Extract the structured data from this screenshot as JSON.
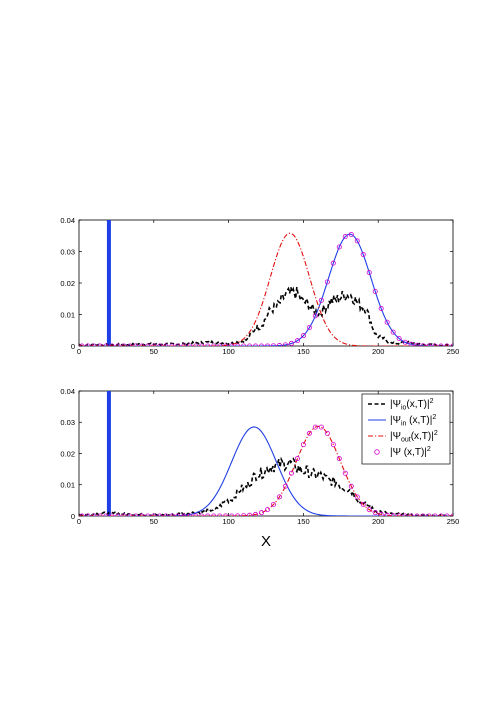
{
  "chart_data": [
    {
      "type": "line",
      "xlim": [
        0,
        250
      ],
      "ylim": [
        0,
        0.04
      ],
      "xticks": [
        0,
        50,
        100,
        150,
        200,
        250
      ],
      "yticks": [
        0,
        0.01,
        0.02,
        0.03,
        0.04
      ],
      "xtick_labels": [
        "0",
        "50",
        "100",
        "150",
        "200",
        "250"
      ],
      "ytick_labels": [
        "0",
        "0.01",
        "0.02",
        "0.03",
        "0.04"
      ],
      "xlabel": "",
      "barrier": {
        "x": 20,
        "color": "#1f3fe6"
      },
      "legend": false,
      "series": [
        {
          "style": "black-dashed",
          "color": "#000000",
          "x": [
            0,
            60,
            90,
            100,
            110,
            120,
            130,
            140,
            145,
            150,
            160,
            170,
            180,
            190,
            200,
            210,
            220,
            230,
            250
          ],
          "y": [
            0.0003,
            0.0006,
            0.0012,
            0.0008,
            0.0015,
            0.006,
            0.012,
            0.0165,
            0.0168,
            0.014,
            0.0105,
            0.0145,
            0.0165,
            0.0125,
            0.003,
            0.0008,
            0.0012,
            0.0004,
            0.0002
          ]
        },
        {
          "style": "blue-solid",
          "color": "#1f3fe6",
          "peak_x": 181,
          "peak_y": 0.0355,
          "sigma": 14.2,
          "x": [
            150,
            165,
            181,
            197,
            212
          ],
          "y": [
            0.003,
            0.017,
            0.0355,
            0.017,
            0.003
          ]
        },
        {
          "style": "red-dashdot",
          "color": "#e01010",
          "peak_x": 141,
          "peak_y": 0.0358,
          "sigma": 13.2,
          "x": [
            112,
            126,
            141,
            156,
            170
          ],
          "y": [
            0.003,
            0.017,
            0.0358,
            0.017,
            0.003
          ]
        },
        {
          "style": "magenta-circles",
          "color": "#d400d4",
          "peak_x": 181,
          "peak_y": 0.0355,
          "sigma": 14.2,
          "x": [
            150,
            165,
            181,
            197,
            212
          ],
          "y": [
            0.003,
            0.017,
            0.0355,
            0.017,
            0.003
          ]
        }
      ]
    },
    {
      "type": "line",
      "xlim": [
        0,
        250
      ],
      "ylim": [
        0,
        0.04
      ],
      "xticks": [
        0,
        50,
        100,
        150,
        200,
        250
      ],
      "yticks": [
        0,
        0.01,
        0.02,
        0.03,
        0.04
      ],
      "xtick_labels": [
        "0",
        "50",
        "100",
        "150",
        "200",
        "250"
      ],
      "ytick_labels": [
        "0",
        "0.01",
        "0.02",
        "0.03",
        "0.04"
      ],
      "xlabel": "X",
      "barrier": {
        "x": 20,
        "color": "#1f3fe6"
      },
      "legend": true,
      "legend_position": "top-right",
      "series": [
        {
          "name_base": "|Ψ",
          "name_sub": "io",
          "name_tail": "(x,T)|",
          "name_sup": "2",
          "style": "black-dashed",
          "color": "#000000",
          "x": [
            0,
            20,
            40,
            60,
            70,
            80,
            90,
            100,
            110,
            120,
            130,
            140,
            150,
            160,
            170,
            180,
            190,
            200,
            210,
            230,
            250
          ],
          "y": [
            0.0004,
            0.0009,
            0.0004,
            0.0003,
            0.0008,
            0.0012,
            0.002,
            0.005,
            0.009,
            0.0135,
            0.016,
            0.017,
            0.0145,
            0.013,
            0.011,
            0.0085,
            0.004,
            0.0015,
            0.0006,
            0.0002,
            0.0001
          ]
        },
        {
          "name_base": "|Ψ",
          "name_sub": "in",
          "name_tail": " (x,T)|",
          "name_sup": "2",
          "style": "blue-solid",
          "color": "#1f3fe6",
          "peak_x": 117,
          "peak_y": 0.0285,
          "sigma": 15.0,
          "x": [
            85,
            101,
            117,
            133,
            149
          ],
          "y": [
            0.003,
            0.0145,
            0.0285,
            0.0145,
            0.003
          ]
        },
        {
          "name_base": "|Ψ",
          "name_sub": "out",
          "name_tail": "(x,T)|",
          "name_sup": "2",
          "style": "red-dashdot",
          "color": "#e01010",
          "peak_x": 160,
          "peak_y": 0.0287,
          "sigma": 14.8,
          "x": [
            128,
            144,
            160,
            176,
            192
          ],
          "y": [
            0.003,
            0.0145,
            0.0287,
            0.0145,
            0.003
          ]
        },
        {
          "name_base": "|Ψ",
          "name_sub": "",
          "name_tail": " (x,T)|",
          "name_sup": "2",
          "style": "magenta-circles",
          "color": "#d400d4",
          "peak_x": 160,
          "peak_y": 0.0287,
          "sigma": 14.8,
          "x": [
            128,
            144,
            160,
            176,
            192
          ],
          "y": [
            0.003,
            0.0145,
            0.0287,
            0.0145,
            0.003
          ]
        }
      ]
    }
  ]
}
